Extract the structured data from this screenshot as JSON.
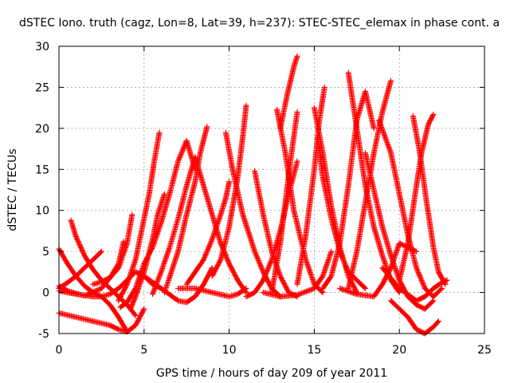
{
  "chart_data": {
    "type": "scatter",
    "title": "dSTEC Iono. truth (cagz, Lon=8, Lat=39, h=237): STEC-STEC_elemax in phase cont. a",
    "xlabel": "GPS time / hours of day 209 of year 2011",
    "ylabel": "dSTEC  / TECUs",
    "xlim": [
      0,
      25
    ],
    "ylim": [
      -5,
      30
    ],
    "x_ticks": [
      0,
      5,
      10,
      15,
      20,
      25
    ],
    "y_ticks": [
      -5,
      0,
      5,
      10,
      15,
      20,
      25,
      30
    ],
    "x_tick_labels": [
      "0",
      "5",
      "10",
      "15",
      "20",
      "25"
    ],
    "y_tick_labels": [
      "-5",
      "0",
      "5",
      "10",
      "15",
      "20",
      "25",
      "30"
    ],
    "grid": true,
    "marker": "plus",
    "series_color": "#ff0000",
    "series": [
      {
        "x": [
          0.0,
          0.5,
          1.0,
          1.5,
          2.0,
          2.5
        ],
        "y": [
          0.5,
          1.2,
          2.0,
          3.0,
          4.0,
          5.0
        ]
      },
      {
        "x": [
          0.0,
          0.5,
          1.0,
          1.5,
          2.0,
          2.5,
          3.0,
          3.5,
          4.0
        ],
        "y": [
          5.3,
          3.5,
          2.0,
          0.8,
          0.0,
          -0.5,
          -1.5,
          -3.0,
          -4.8
        ]
      },
      {
        "x": [
          0.7,
          1.0,
          1.5,
          2.0,
          2.5,
          3.0,
          3.5,
          4.0,
          4.5
        ],
        "y": [
          8.8,
          6.8,
          4.5,
          2.8,
          1.5,
          0.5,
          -0.5,
          -1.5,
          -2.8
        ]
      },
      {
        "x": [
          0.0,
          1.0,
          2.0,
          2.5,
          3.0,
          3.5,
          4.0,
          4.5,
          5.0,
          5.5,
          6.0
        ],
        "y": [
          0.2,
          -0.2,
          -0.5,
          -0.5,
          -0.2,
          0.5,
          1.5,
          2.5,
          2.0,
          1.0,
          0.5
        ]
      },
      {
        "x": [
          0.0,
          0.5,
          1.5,
          2.5,
          3.0,
          3.5,
          3.8
        ],
        "y": [
          0.8,
          0.2,
          -0.4,
          0.5,
          1.8,
          3.5,
          6.2
        ]
      },
      {
        "x": [
          2.0,
          2.5,
          3.0,
          3.5,
          4.0,
          4.3
        ],
        "y": [
          1.0,
          1.3,
          1.8,
          3.0,
          6.0,
          9.5
        ]
      },
      {
        "x": [
          0.0,
          1.0,
          2.0,
          3.0,
          3.5,
          4.0,
          4.5,
          5.0
        ],
        "y": [
          -2.5,
          -3.0,
          -3.5,
          -4.0,
          -4.5,
          -4.8,
          -4.0,
          -2.0
        ]
      },
      {
        "x": [
          3.5,
          4.0,
          4.5,
          5.0,
          5.3,
          5.6,
          5.9
        ],
        "y": [
          -1.0,
          1.0,
          4.0,
          9.0,
          12.0,
          16.0,
          19.5
        ]
      },
      {
        "x": [
          3.6,
          4.0,
          4.5,
          5.0,
          5.5,
          6.0,
          6.5,
          7.0,
          7.5,
          8.0
        ],
        "y": [
          -1.8,
          -1.2,
          0.5,
          3.5,
          5.5,
          8.5,
          12.0,
          16.0,
          18.5,
          15.0
        ]
      },
      {
        "x": [
          4.2,
          4.5,
          5.0,
          5.5,
          5.8,
          6.2
        ],
        "y": [
          -2.0,
          -0.5,
          2.5,
          6.5,
          9.5,
          12.0
        ]
      },
      {
        "x": [
          5.0,
          6.0,
          7.0,
          7.5,
          8.0,
          8.5,
          9.0
        ],
        "y": [
          2.0,
          0.5,
          -1.0,
          -1.2,
          -0.5,
          1.0,
          3.0
        ]
      },
      {
        "x": [
          5.5,
          6.0,
          6.5,
          7.0,
          7.5,
          8.0
        ],
        "y": [
          -0.2,
          2.5,
          5.5,
          9.0,
          13.0,
          16.5
        ]
      },
      {
        "x": [
          6.2,
          7.0,
          7.5,
          8.0,
          8.3,
          8.7
        ],
        "y": [
          0.0,
          5.0,
          9.5,
          13.5,
          17.0,
          20.2
        ]
      },
      {
        "x": [
          8.0,
          8.5,
          9.0,
          9.5,
          10.0,
          10.5,
          11.0
        ],
        "y": [
          16.5,
          13.0,
          9.5,
          6.0,
          3.5,
          1.5,
          0.0
        ]
      },
      {
        "x": [
          7.5,
          8.5,
          9.0,
          9.5,
          9.8,
          10.0
        ],
        "y": [
          1.0,
          4.0,
          6.5,
          9.5,
          11.5,
          13.5
        ]
      },
      {
        "x": [
          7.0,
          8.0,
          9.0,
          10.0,
          10.5,
          11.0
        ],
        "y": [
          0.5,
          0.5,
          0.0,
          -0.5,
          -0.2,
          0.5
        ]
      },
      {
        "x": [
          9.0,
          9.5,
          10.0,
          10.5,
          10.8,
          11.0
        ],
        "y": [
          2.0,
          4.0,
          8.0,
          14.0,
          19.0,
          22.8
        ]
      },
      {
        "x": [
          9.8,
          10.2,
          10.8,
          11.5,
          12.0,
          12.5,
          13.0
        ],
        "y": [
          19.5,
          15.0,
          9.5,
          5.0,
          2.5,
          0.5,
          -0.5
        ]
      },
      {
        "x": [
          11.5,
          12.0,
          12.5,
          13.0,
          13.5,
          14.0
        ],
        "y": [
          14.8,
          9.5,
          5.0,
          2.0,
          0.0,
          -0.5
        ]
      },
      {
        "x": [
          11.0,
          11.5,
          12.0,
          12.5,
          13.0,
          13.5,
          14.0
        ],
        "y": [
          -0.5,
          0.0,
          1.5,
          4.0,
          7.5,
          12.0,
          16.0
        ]
      },
      {
        "x": [
          12.5,
          13.0,
          13.3,
          13.6,
          14.0
        ],
        "y": [
          0.0,
          6.0,
          11.0,
          16.0,
          22.0
        ]
      },
      {
        "x": [
          12.8,
          13.3,
          13.8,
          14.5,
          15.0,
          15.5
        ],
        "y": [
          22.3,
          17.0,
          10.0,
          4.0,
          1.0,
          0.0
        ]
      },
      {
        "x": [
          13.0,
          13.4,
          13.8,
          14.0
        ],
        "y": [
          20.0,
          24.0,
          27.5,
          28.8
        ]
      },
      {
        "x": [
          12.0,
          13.0,
          14.0,
          15.0,
          15.5,
          16.0
        ],
        "y": [
          0.0,
          -0.5,
          -0.3,
          0.5,
          2.0,
          5.0
        ]
      },
      {
        "x": [
          14.0,
          14.5,
          15.0,
          15.3,
          15.6
        ],
        "y": [
          1.0,
          7.0,
          15.0,
          21.0,
          25.0
        ]
      },
      {
        "x": [
          15.0,
          15.5,
          16.0,
          16.5,
          17.0,
          17.5
        ],
        "y": [
          22.5,
          17.0,
          10.5,
          5.5,
          2.0,
          0.0
        ]
      },
      {
        "x": [
          15.2,
          15.5,
          16.0,
          16.5,
          17.0,
          18.0
        ],
        "y": [
          19.0,
          14.0,
          9.0,
          5.0,
          2.5,
          0.5
        ]
      },
      {
        "x": [
          15.5,
          16.0,
          16.5,
          17.0,
          17.5,
          18.0,
          18.5
        ],
        "y": [
          0.5,
          2.0,
          6.0,
          13.0,
          21.0,
          24.5,
          20.0
        ]
      },
      {
        "x": [
          17.0,
          17.5,
          18.0,
          18.5,
          19.0,
          19.5,
          20.0
        ],
        "y": [
          26.8,
          20.0,
          13.0,
          8.0,
          4.5,
          1.5,
          0.0
        ]
      },
      {
        "x": [
          17.0,
          17.5,
          18.0,
          18.5,
          19.0,
          19.5
        ],
        "y": [
          0.5,
          5.0,
          11.0,
          17.0,
          22.0,
          25.8
        ]
      },
      {
        "x": [
          16.5,
          17.5,
          18.5,
          19.0,
          19.5,
          20.0,
          21.0
        ],
        "y": [
          0.5,
          -0.2,
          -0.5,
          1.0,
          3.0,
          6.0,
          5.0
        ]
      },
      {
        "x": [
          18.0,
          18.5,
          19.0,
          19.5,
          20.0,
          20.5,
          21.0,
          21.5,
          22.0
        ],
        "y": [
          17.0,
          12.5,
          8.0,
          4.5,
          1.5,
          -0.5,
          -1.5,
          -2.0,
          -1.0
        ]
      },
      {
        "x": [
          18.8,
          19.5,
          20.0,
          20.5,
          21.0,
          21.5,
          22.0,
          22.5
        ],
        "y": [
          21.0,
          17.0,
          12.0,
          7.0,
          3.0,
          0.5,
          -0.5,
          0.5
        ]
      },
      {
        "x": [
          20.0,
          20.5,
          21.0,
          21.3,
          21.7,
          22.0
        ],
        "y": [
          1.5,
          6.0,
          13.0,
          17.0,
          20.5,
          21.7
        ]
      },
      {
        "x": [
          20.8,
          21.2,
          21.6,
          22.0,
          22.3,
          22.7
        ],
        "y": [
          21.5,
          17.0,
          11.0,
          5.5,
          2.5,
          1.0
        ]
      },
      {
        "x": [
          19.5,
          20.0,
          20.5,
          21.0,
          21.5,
          22.0,
          22.3
        ],
        "y": [
          -1.0,
          -2.0,
          -3.0,
          -4.5,
          -5.0,
          -4.2,
          -3.5
        ]
      },
      {
        "x": [
          19.0,
          20.0,
          21.0,
          21.5,
          22.0,
          22.5,
          22.8
        ],
        "y": [
          3.0,
          0.5,
          -1.0,
          -0.5,
          0.5,
          1.2,
          1.5
        ]
      }
    ]
  }
}
